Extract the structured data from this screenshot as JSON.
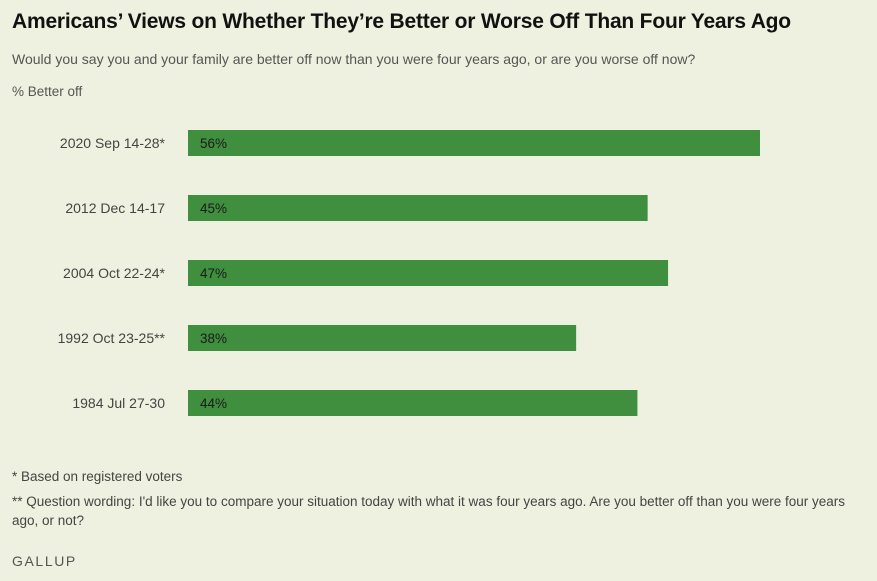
{
  "chart_data": {
    "type": "bar",
    "orientation": "horizontal",
    "title": "Americans’ Views on Whether They’re Better or Worse Off Than Four Years Ago",
    "subtitle": "Would you say you and your family are better off now than you were four years ago, or are you worse off now?",
    "unit_label": "% Better off",
    "categories": [
      "2020 Sep 14-28*",
      "2012 Dec 14-17",
      "2004 Oct 22-24*",
      "1992 Oct 23-25**",
      "1984 Jul 27-30"
    ],
    "values": [
      56,
      45,
      47,
      38,
      44
    ],
    "value_labels": [
      "56%",
      "45%",
      "47%",
      "38%",
      "44%"
    ],
    "xlim": [
      0,
      56
    ],
    "grid": false,
    "legend": "none",
    "bar_color": "#3f8f3f"
  },
  "footnotes": [
    "* Based on registered voters",
    "** Question wording: I'd like you to compare your situation today with what it was four years ago. Are you better off than you were four years ago, or not?"
  ],
  "brand": "GALLUP"
}
